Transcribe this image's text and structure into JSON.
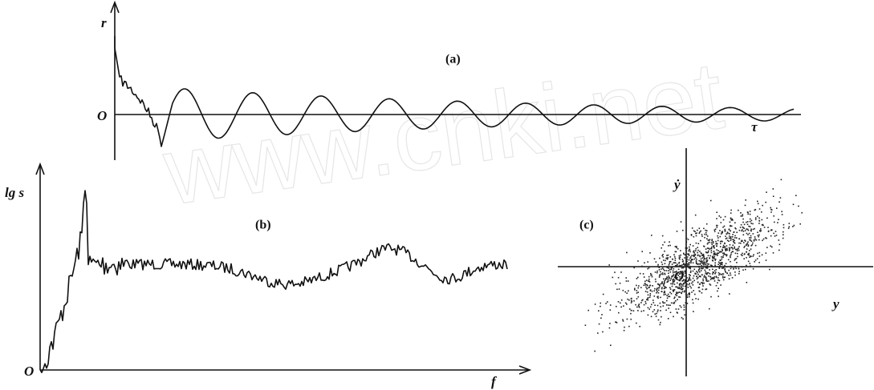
{
  "watermark": "www.cnki.net",
  "panels": [
    {
      "label": "(a)",
      "y_axis": "r",
      "origin": "O",
      "x_axis": "τ"
    },
    {
      "label": "(b)",
      "y_axis": "lg s",
      "origin": "O",
      "x_axis": "f"
    },
    {
      "label": "(c)",
      "y_axis": "ẏ",
      "origin": "O",
      "x_axis": "y"
    }
  ]
}
